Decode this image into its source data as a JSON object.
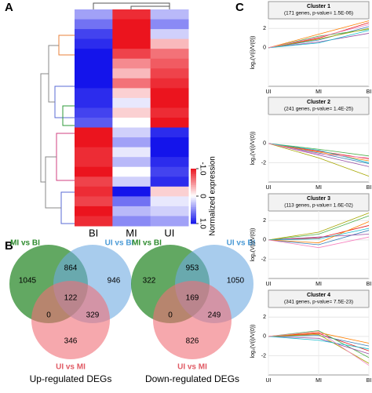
{
  "panel_labels": [
    "A",
    "B",
    "C"
  ],
  "heatmap": {
    "columns": [
      "BI",
      "MI",
      "UI"
    ],
    "rows": [
      [
        0.4,
        -0.9,
        0.3
      ],
      [
        0.6,
        -1,
        0.5
      ],
      [
        0.8,
        -1,
        0.2
      ],
      [
        0.9,
        -1,
        -0.3
      ],
      [
        1,
        -0.8,
        -0.6
      ],
      [
        1,
        -0.5,
        -0.7
      ],
      [
        1,
        -0.3,
        -0.8
      ],
      [
        1,
        -0.6,
        -0.9
      ],
      [
        0.9,
        -0.2,
        -1
      ],
      [
        0.9,
        0.1,
        -1
      ],
      [
        0.8,
        -0.2,
        -0.9
      ],
      [
        0.7,
        0,
        -1
      ],
      [
        -1,
        0.2,
        0.9
      ],
      [
        -1,
        0.4,
        1
      ],
      [
        -0.9,
        0.1,
        1
      ],
      [
        -0.9,
        0.3,
        0.9
      ],
      [
        -1,
        0,
        0.8
      ],
      [
        -0.8,
        0.2,
        0.9
      ],
      [
        -0.9,
        1,
        -0.2
      ],
      [
        -0.8,
        0.6,
        0.1
      ],
      [
        -1,
        0.3,
        0.2
      ],
      [
        -0.9,
        0.5,
        0.4
      ]
    ],
    "colorbar": {
      "title": "Normalized expression",
      "lim": [
        -1,
        1
      ],
      "ticks": [
        {
          "value": -1,
          "label": "-1.0"
        },
        0,
        {
          "value": 1,
          "label": "1.0"
        }
      ]
    }
  },
  "venns": [
    {
      "sets": [
        "MI vs BI",
        "UI vs BI",
        "UI vs MI"
      ],
      "regions": [
        1045,
        864,
        946,
        0,
        122,
        329,
        346
      ],
      "title": "Up-regulated DEGs"
    },
    {
      "sets": [
        "MI vs BI",
        "UI vs BI",
        "UI vs MI"
      ],
      "regions": [
        322,
        953,
        1050,
        0,
        169,
        249,
        826
      ],
      "title": "Down-regulated DEGs"
    }
  ],
  "cluster_x": [
    "UI",
    "MI",
    "BI"
  ],
  "cluster_ylabel": "log₂(V(i)/V(0))",
  "clusters": [
    {
      "title": "Cluster 1",
      "subtitle": "(171 genes, p-value= 1.5E-06)",
      "ylim": [
        -4,
        3
      ],
      "yticks": [
        0,
        2
      ],
      "lines": [
        [
          0,
          1,
          2.6
        ],
        [
          0,
          0.8,
          2.2
        ],
        [
          0,
          1.2,
          1.9
        ],
        [
          0,
          0.6,
          1.5
        ],
        [
          0,
          1.4,
          2.8
        ],
        [
          0,
          0.9,
          2.0
        ],
        [
          0,
          0.5,
          1.8
        ],
        [
          0,
          1.1,
          2.4
        ]
      ]
    },
    {
      "title": "Cluster 2",
      "subtitle": "(241 genes, p-value= 1.4E-25)",
      "ylim": [
        -4,
        3
      ],
      "yticks": [
        -2,
        0
      ],
      "lines": [
        [
          0,
          -0.8,
          -1.6
        ],
        [
          0,
          -1,
          -2.1
        ],
        [
          0,
          -0.6,
          -1.3
        ],
        [
          0,
          -1.2,
          -2.4
        ],
        [
          0,
          -0.9,
          -1.8
        ],
        [
          0,
          -1.5,
          -3.4
        ],
        [
          0,
          -0.7,
          -2.0
        ],
        [
          0,
          -1.1,
          -1.5
        ]
      ]
    },
    {
      "title": "Cluster 3",
      "subtitle": "(113 genes, p-value= 1.6E-02)",
      "ylim": [
        -4,
        3
      ],
      "yticks": [
        -2,
        0,
        2
      ],
      "lines": [
        [
          0,
          0.2,
          1.5
        ],
        [
          0,
          -0.5,
          1.0
        ],
        [
          0,
          0.6,
          2.5
        ],
        [
          0,
          0.3,
          0.6
        ],
        [
          0,
          -0.3,
          1.9
        ],
        [
          0,
          0.8,
          2.8
        ],
        [
          0,
          0.1,
          1.2
        ],
        [
          0,
          -0.8,
          0.3
        ]
      ]
    },
    {
      "title": "Cluster 4",
      "subtitle": "(341 genes, p-value= 7.5E-23)",
      "ylim": [
        -4,
        3
      ],
      "yticks": [
        -2,
        0,
        2
      ],
      "lines": [
        [
          0,
          0.3,
          -1.5
        ],
        [
          0,
          0.1,
          -1.0
        ],
        [
          0,
          0.6,
          -2.2
        ],
        [
          0,
          -0.2,
          -1.8
        ],
        [
          0,
          0.4,
          -0.7
        ],
        [
          0,
          0.2,
          -2.8
        ],
        [
          0,
          -0.4,
          -1.3
        ],
        [
          0,
          0.5,
          -3.0
        ]
      ]
    }
  ],
  "line_colors": [
    "#e41a1c",
    "#377eb8",
    "#4daf4a",
    "#984ea3",
    "#ff7f00",
    "#a6a600",
    "#17becf",
    "#f781bf"
  ]
}
